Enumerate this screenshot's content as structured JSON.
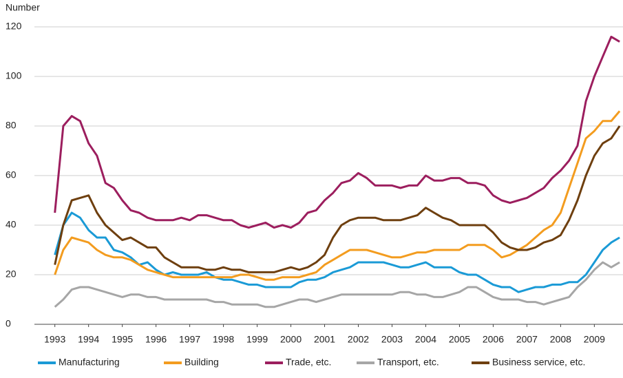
{
  "chart_data": {
    "type": "line",
    "y_label": "Number",
    "x": [
      1993,
      1993.25,
      1993.5,
      1993.75,
      1994,
      1994.25,
      1994.5,
      1994.75,
      1995,
      1995.25,
      1995.5,
      1995.75,
      1996,
      1996.25,
      1996.5,
      1996.75,
      1997,
      1997.25,
      1997.5,
      1997.75,
      1998,
      1998.25,
      1998.5,
      1998.75,
      1999,
      1999.25,
      1999.5,
      1999.75,
      2000,
      2000.25,
      2000.5,
      2000.75,
      2001,
      2001.25,
      2001.5,
      2001.75,
      2002,
      2002.25,
      2002.5,
      2002.75,
      2003,
      2003.25,
      2003.5,
      2003.75,
      2004,
      2004.25,
      2004.5,
      2004.75,
      2005,
      2005.25,
      2005.5,
      2005.75,
      2006,
      2006.25,
      2006.5,
      2006.75,
      2007,
      2007.25,
      2007.5,
      2007.75,
      2008,
      2008.25,
      2008.5,
      2008.75,
      2009,
      2009.25,
      2009.5,
      2009.75
    ],
    "xlim": [
      1992.7,
      2009.85
    ],
    "xticks": [
      1993,
      1994,
      1995,
      1996,
      1997,
      1998,
      1999,
      2000,
      2001,
      2002,
      2003,
      2004,
      2005,
      2006,
      2007,
      2008,
      2009
    ],
    "ylim": [
      0,
      120
    ],
    "yticks": [
      0,
      20,
      40,
      60,
      80,
      100,
      120
    ],
    "grid": true,
    "series": [
      {
        "name": "Manufacturing",
        "color": "#1a9ad6",
        "values": [
          28,
          40,
          45,
          43,
          38,
          35,
          35,
          30,
          29,
          27,
          24,
          25,
          22,
          20,
          21,
          20,
          20,
          20,
          21,
          19,
          18,
          18,
          17,
          16,
          16,
          15,
          15,
          15,
          15,
          17,
          18,
          18,
          19,
          21,
          22,
          23,
          25,
          25,
          25,
          25,
          24,
          23,
          23,
          24,
          25,
          23,
          23,
          23,
          21,
          20,
          20,
          18,
          16,
          15,
          15,
          13,
          14,
          15,
          15,
          16,
          16,
          17,
          17,
          20,
          25,
          30,
          33,
          35
        ]
      },
      {
        "name": "Building",
        "color": "#f39c1f",
        "values": [
          20,
          30,
          35,
          34,
          33,
          30,
          28,
          27,
          27,
          26,
          24,
          22,
          21,
          20,
          19,
          19,
          19,
          19,
          19,
          19,
          19,
          19,
          20,
          20,
          19,
          18,
          18,
          19,
          19,
          19,
          20,
          21,
          24,
          26,
          28,
          30,
          30,
          30,
          29,
          28,
          27,
          27,
          28,
          29,
          29,
          30,
          30,
          30,
          30,
          32,
          32,
          32,
          30,
          27,
          28,
          30,
          32,
          35,
          38,
          40,
          45,
          55,
          65,
          75,
          78,
          82,
          82,
          86
        ]
      },
      {
        "name": "Trade, etc.",
        "color": "#9c1e5e",
        "values": [
          45,
          80,
          84,
          82,
          73,
          68,
          57,
          55,
          50,
          46,
          45,
          43,
          42,
          42,
          42,
          43,
          42,
          44,
          44,
          43,
          42,
          42,
          40,
          39,
          40,
          41,
          39,
          40,
          39,
          41,
          45,
          46,
          50,
          53,
          57,
          58,
          61,
          59,
          56,
          56,
          56,
          55,
          56,
          56,
          60,
          58,
          58,
          59,
          59,
          57,
          57,
          56,
          52,
          50,
          49,
          50,
          51,
          53,
          55,
          59,
          62,
          66,
          72,
          90,
          100,
          108,
          116,
          114
        ]
      },
      {
        "name": "Transport, etc.",
        "color": "#a6a6a6",
        "values": [
          7,
          10,
          14,
          15,
          15,
          14,
          13,
          12,
          11,
          12,
          12,
          11,
          11,
          10,
          10,
          10,
          10,
          10,
          10,
          9,
          9,
          8,
          8,
          8,
          8,
          7,
          7,
          8,
          9,
          10,
          10,
          9,
          10,
          11,
          12,
          12,
          12,
          12,
          12,
          12,
          12,
          13,
          13,
          12,
          12,
          11,
          11,
          12,
          13,
          15,
          15,
          13,
          11,
          10,
          10,
          10,
          9,
          9,
          8,
          9,
          10,
          11,
          15,
          18,
          22,
          25,
          23,
          25
        ]
      },
      {
        "name": "Business service, etc.",
        "color": "#6e3f0f",
        "values": [
          24,
          40,
          50,
          51,
          52,
          45,
          40,
          37,
          34,
          35,
          33,
          31,
          31,
          27,
          25,
          23,
          23,
          23,
          22,
          22,
          23,
          22,
          22,
          21,
          21,
          21,
          21,
          22,
          23,
          22,
          23,
          25,
          28,
          35,
          40,
          42,
          43,
          43,
          43,
          42,
          42,
          42,
          43,
          44,
          47,
          45,
          43,
          42,
          40,
          40,
          40,
          40,
          37,
          33,
          31,
          30,
          30,
          31,
          33,
          34,
          36,
          42,
          50,
          60,
          68,
          73,
          75,
          80
        ]
      }
    ]
  }
}
